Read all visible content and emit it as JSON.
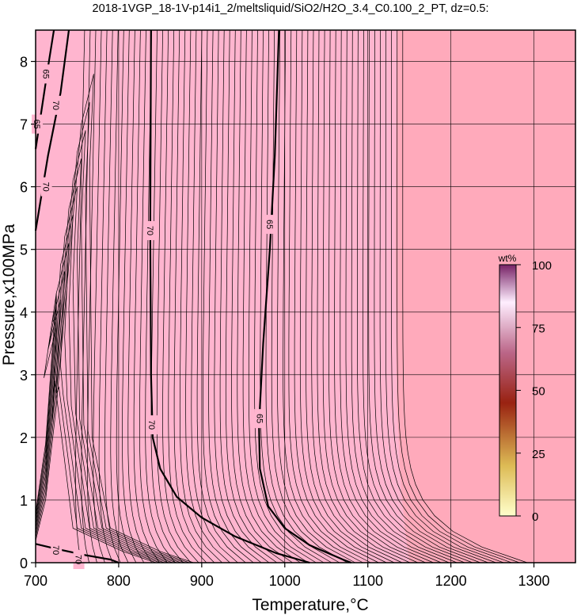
{
  "chart_data": {
    "type": "contour",
    "title": "2018-1VGP_18-1V-p14i1_2/meltsliquid/SiO2/H2O_3.4_C0.100_2_PT, dz=0.5:",
    "xlabel": "Temperature,°C",
    "ylabel": "Pressure,x100MPa",
    "xlim": [
      700,
      1350
    ],
    "ylim": [
      0,
      8.5
    ],
    "x_ticks": [
      "700",
      "800",
      "900",
      "1000",
      "1100",
      "1200",
      "1300"
    ],
    "y_ticks": [
      "0",
      "1",
      "2",
      "3",
      "4",
      "5",
      "6",
      "7",
      "8"
    ],
    "grid": true,
    "contour_interval_wt_pct": 0.5,
    "colorbar": {
      "unit": "wt%",
      "ticks": [
        "0",
        "25",
        "50",
        "75",
        "100"
      ],
      "colors": [
        "#ffffcc",
        "#ddbb55",
        "#992211",
        "#bb6688",
        "#ffeeff",
        "#772266"
      ]
    },
    "background_colors": {
      "low_temperature_region": "#ffb5cf",
      "high_temperature_region": "#ffaabb"
    },
    "labeled_contours": [
      {
        "value": "70",
        "path": [
          [
            839,
            8.5
          ],
          [
            838,
            5.3
          ],
          [
            839,
            3.0
          ],
          [
            841,
            2.0
          ],
          [
            850,
            1.5
          ],
          [
            870,
            1.05
          ],
          [
            900,
            0.72
          ],
          [
            940,
            0.42
          ],
          [
            990,
            0.15
          ],
          [
            1030,
            0
          ]
        ]
      },
      {
        "value": "65",
        "path": [
          [
            993,
            8.5
          ],
          [
            988,
            6.5
          ],
          [
            982,
            5.0
          ],
          [
            974,
            3.5
          ],
          [
            969,
            2.2
          ],
          [
            970,
            1.5
          ],
          [
            980,
            0.9
          ],
          [
            1000,
            0.55
          ],
          [
            1030,
            0.28
          ],
          [
            1070,
            0.05
          ],
          [
            1080,
            0
          ]
        ]
      },
      {
        "value": "70",
        "path": [
          [
            700,
            5.3
          ],
          [
            715,
            6.5
          ],
          [
            730,
            7.5
          ],
          [
            740,
            8.5
          ]
        ]
      },
      {
        "value": "65",
        "path": [
          [
            700,
            6.6
          ],
          [
            708,
            7.3
          ],
          [
            716,
            8.0
          ],
          [
            722,
            8.5
          ]
        ]
      },
      {
        "value": "70",
        "path": [
          [
            700,
            0.3
          ],
          [
            725,
            0.22
          ],
          [
            760,
            0.12
          ],
          [
            790,
            0.05
          ],
          [
            800,
            0
          ]
        ]
      }
    ],
    "contour_labels": [
      {
        "text": "70",
        "x": 838,
        "y": 5.3
      },
      {
        "text": "70",
        "x": 840,
        "y": 2.2
      },
      {
        "text": "65",
        "x": 982,
        "y": 5.4
      },
      {
        "text": "65",
        "x": 970,
        "y": 2.3
      },
      {
        "text": "70",
        "x": 725,
        "y": 7.3
      },
      {
        "text": "65",
        "x": 713,
        "y": 7.8
      },
      {
        "text": "65",
        "x": 702,
        "y": 7.0
      },
      {
        "text": "70",
        "x": 713,
        "y": 6.0
      },
      {
        "text": "70",
        "x": 725,
        "y": 0.2
      },
      {
        "text": "70",
        "x": 752,
        "y": 0.05
      }
    ]
  }
}
